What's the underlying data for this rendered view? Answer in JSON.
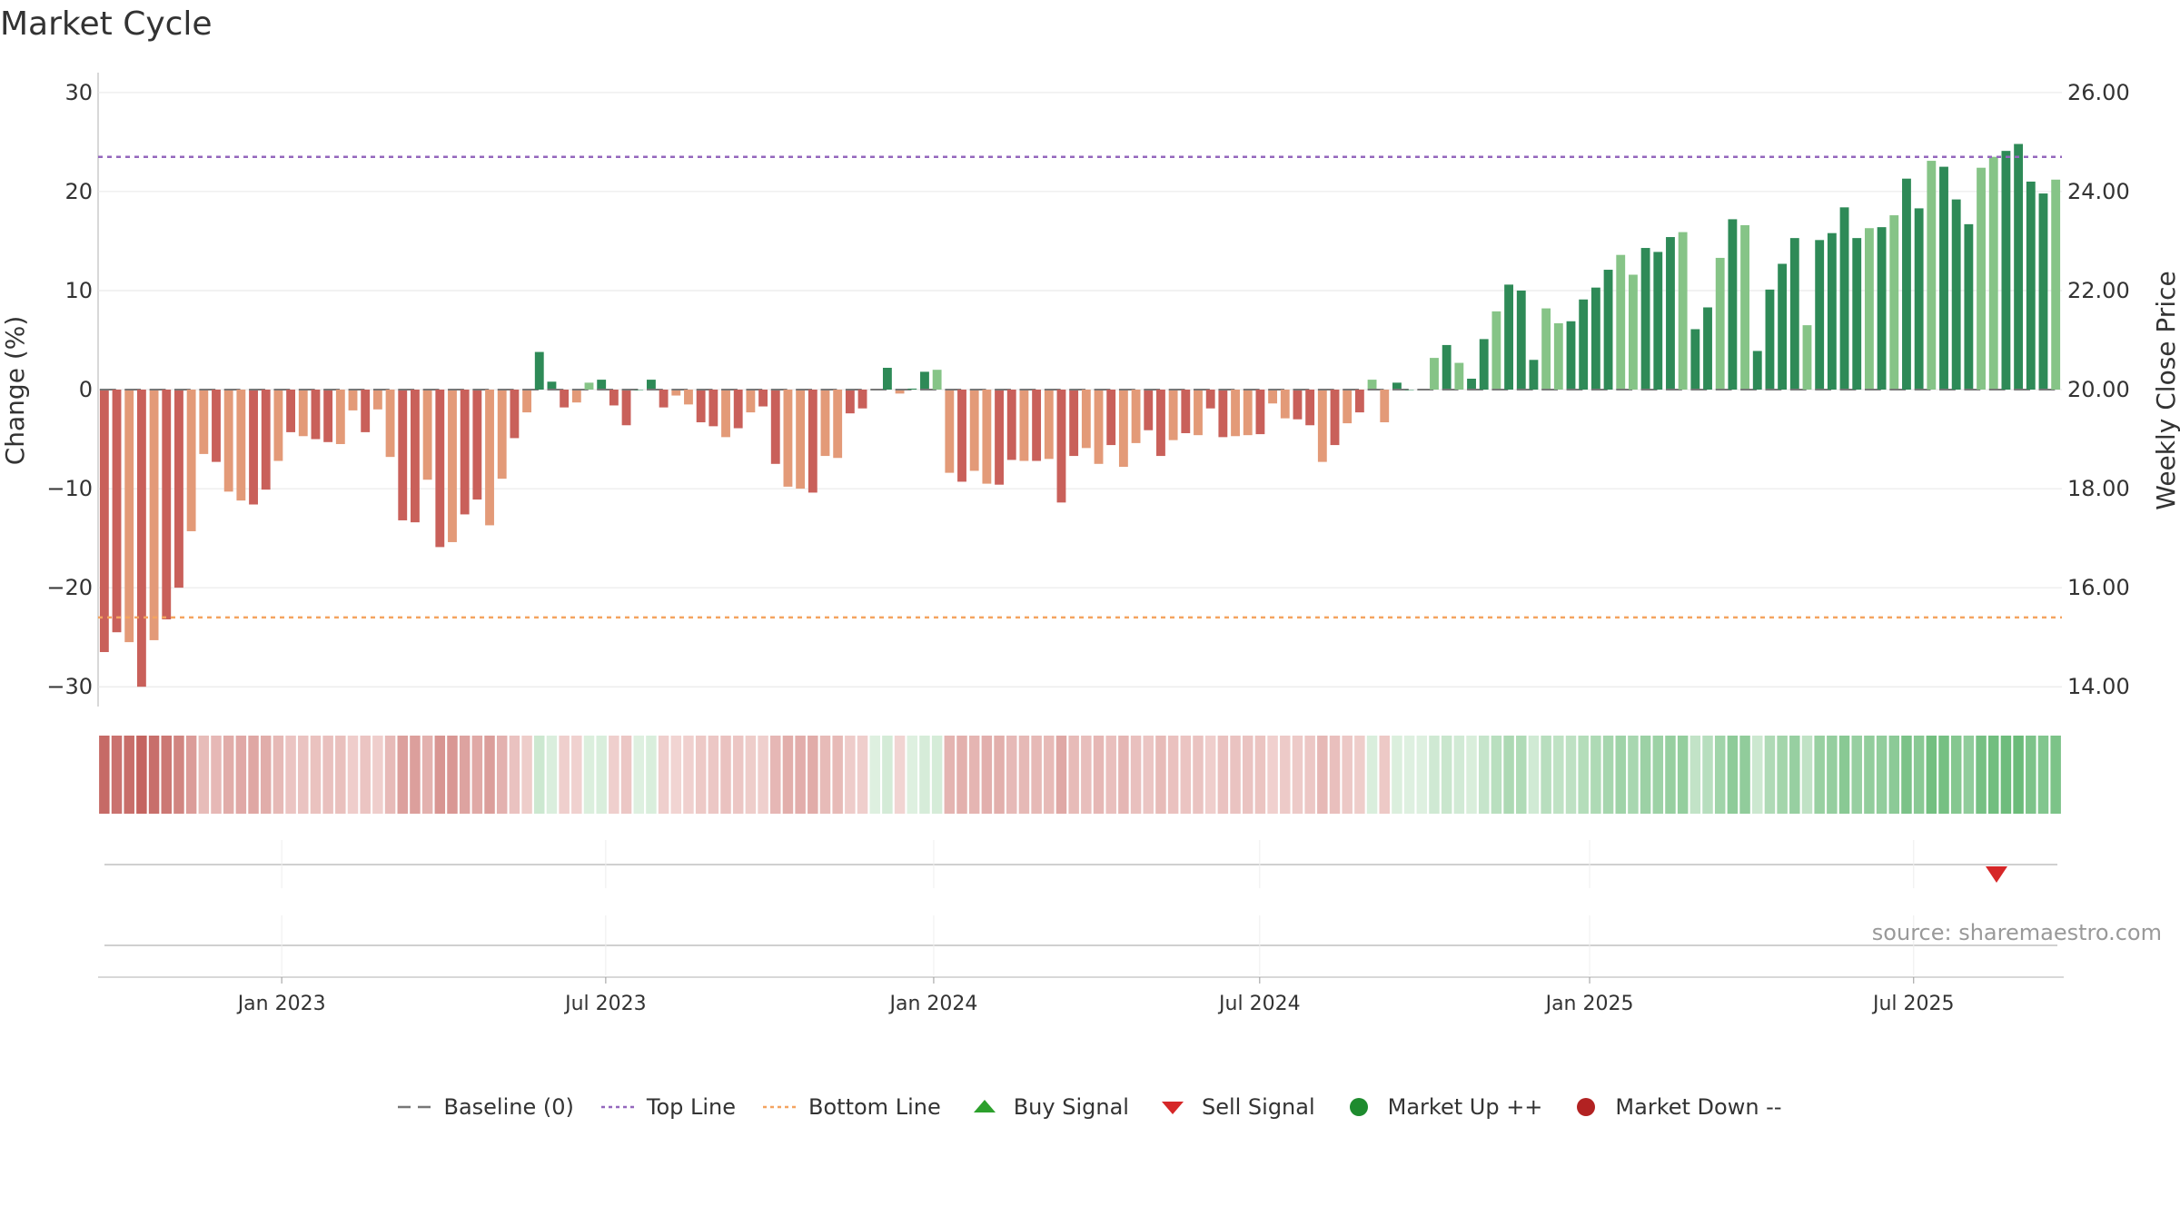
{
  "title": "Market Cycle",
  "source": "source: sharemaestro.com",
  "legend": [
    {
      "label": "Baseline (0)",
      "symbol": "dash",
      "color": "#777777"
    },
    {
      "label": "Top Line",
      "symbol": "dotted",
      "color": "#9467bd"
    },
    {
      "label": "Bottom Line",
      "symbol": "dotted",
      "color": "#f4a460"
    },
    {
      "label": "Buy Signal",
      "symbol": "triangle-up",
      "color": "#2ca02c"
    },
    {
      "label": "Sell Signal",
      "symbol": "triangle-down",
      "color": "#d62728"
    },
    {
      "label": "Market Up ++",
      "symbol": "circle",
      "color": "#1e8b2e"
    },
    {
      "label": "Market Down --",
      "symbol": "circle",
      "color": "#b22222"
    }
  ],
  "chart_data": {
    "type": "bar",
    "title": "Market Cycle",
    "ylabel": "Change (%)",
    "y2label": "Weekly Close Price",
    "ylim": [
      -32,
      32
    ],
    "y2lim": [
      13.6,
      26.4
    ],
    "yticks": [
      "30",
      "20",
      "10",
      "0",
      "−10",
      "−20",
      "−30"
    ],
    "y2ticks": [
      "26.00",
      "24.00",
      "22.00",
      "20.00",
      "18.00",
      "16.00",
      "14.00"
    ],
    "xticks": [
      "Jan 2023",
      "Jul 2023",
      "Jan 2024",
      "Jul 2024",
      "Jan 2025",
      "Jul 2025"
    ],
    "top_line": 23.5,
    "bottom_line": -23.0,
    "values": [
      -26.5,
      -24.5,
      -25.5,
      -30,
      -25.3,
      -23.2,
      -20,
      -14.3,
      -6.5,
      -7.3,
      -10.3,
      -11.2,
      -11.6,
      -10.1,
      -7.2,
      -4.3,
      -4.7,
      -5,
      -5.3,
      -5.5,
      -2.1,
      -4.3,
      -2,
      -6.8,
      -13.2,
      -13.4,
      -9.1,
      -15.9,
      -15.4,
      -12.6,
      -11.1,
      -13.7,
      -9,
      -4.9,
      -2.3,
      3.8,
      0.8,
      -1.8,
      -1.3,
      0.7,
      1,
      -1.6,
      -3.6,
      0,
      1,
      -1.8,
      -0.6,
      -1.5,
      -3.3,
      -3.7,
      -4.8,
      -3.9,
      -2.3,
      -1.7,
      -7.5,
      -9.8,
      -10,
      -10.4,
      -6.7,
      -6.9,
      -2.4,
      -1.9,
      0,
      2.2,
      -0.4,
      0.1,
      1.8,
      2,
      -8.4,
      -9.3,
      -8.2,
      -9.5,
      -9.6,
      -7.1,
      -7.2,
      -7.2,
      -7,
      -11.4,
      -6.7,
      -5.9,
      -7.5,
      -5.6,
      -7.8,
      -5.4,
      -4.1,
      -6.7,
      -5.1,
      -4.4,
      -4.6,
      -1.9,
      -4.8,
      -4.7,
      -4.6,
      -4.5,
      -1.4,
      -2.9,
      -3,
      -3.6,
      -7.3,
      -5.6,
      -3.4,
      -2.3,
      1,
      -3.3,
      0.7,
      0,
      0,
      3.2,
      4.5,
      2.7,
      1.1,
      5.1,
      7.9,
      10.6,
      10,
      3,
      8.2,
      6.7,
      6.9,
      9.1,
      10.3,
      12.1,
      13.6,
      11.6,
      14.3,
      13.9,
      15.4,
      15.9,
      6.1,
      8.3,
      13.3,
      17.2,
      16.6,
      3.9,
      10.1,
      12.7,
      15.3,
      6.5,
      15.1,
      15.8,
      18.4,
      15.3,
      16.3,
      16.4,
      17.6,
      21.3,
      18.3,
      23.1,
      22.5,
      19.2,
      16.7,
      22.4,
      23.5,
      24.1,
      24.8,
      21,
      19.8,
      21.2
    ],
    "sell_signals": [
      {
        "date": "2025-09-05"
      }
    ],
    "buy_signals": []
  }
}
